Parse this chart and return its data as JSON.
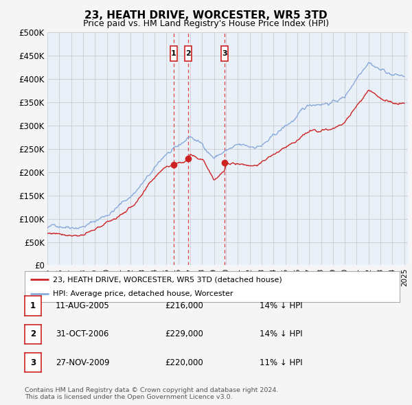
{
  "title": "23, HEATH DRIVE, WORCESTER, WR5 3TD",
  "subtitle": "Price paid vs. HM Land Registry's House Price Index (HPI)",
  "ytick_values": [
    0,
    50000,
    100000,
    150000,
    200000,
    250000,
    300000,
    350000,
    400000,
    450000,
    500000
  ],
  "ylim": [
    0,
    500000
  ],
  "xlim_start": 1995.0,
  "xlim_end": 2025.3,
  "background_color": "#f5f5f5",
  "plot_bg_color": "#eaf0f8",
  "grid_color": "#cccccc",
  "hpi_color": "#88aadd",
  "price_color": "#cc2222",
  "dashed_line_color": "#dd4444",
  "box_border_color": "#cc2222",
  "legend_label_price": "23, HEATH DRIVE, WORCESTER, WR5 3TD (detached house)",
  "legend_label_hpi": "HPI: Average price, detached house, Worcester",
  "sales": [
    {
      "num": 1,
      "date": "11-AUG-2005",
      "price": 216000,
      "year": 2005.615
    },
    {
      "num": 2,
      "date": "31-OCT-2006",
      "price": 229000,
      "year": 2006.83
    },
    {
      "num": 3,
      "date": "27-NOV-2009",
      "price": 220000,
      "year": 2009.9
    }
  ],
  "table_rows": [
    {
      "num": 1,
      "date": "11-AUG-2005",
      "price": "£216,000",
      "pct": "14% ↓ HPI"
    },
    {
      "num": 2,
      "date": "31-OCT-2006",
      "price": "£229,000",
      "pct": "14% ↓ HPI"
    },
    {
      "num": 3,
      "date": "27-NOV-2009",
      "price": "£220,000",
      "pct": "11% ↓ HPI"
    }
  ],
  "footer": "Contains HM Land Registry data © Crown copyright and database right 2024.\nThis data is licensed under the Open Government Licence v3.0.",
  "xtick_years": [
    1995,
    1996,
    1997,
    1998,
    1999,
    2000,
    2001,
    2002,
    2003,
    2004,
    2005,
    2006,
    2007,
    2008,
    2009,
    2010,
    2011,
    2012,
    2013,
    2014,
    2015,
    2016,
    2017,
    2018,
    2019,
    2020,
    2021,
    2022,
    2023,
    2024,
    2025
  ],
  "hpi_anchors_x": [
    1995,
    1996,
    1997,
    1998,
    1999,
    2000,
    2001,
    2002,
    2003,
    2004,
    2005,
    2006,
    2007,
    2008,
    2009,
    2010,
    2011,
    2012,
    2013,
    2014,
    2015,
    2016,
    2017,
    2018,
    2019,
    2020,
    2021,
    2022,
    2023,
    2024,
    2025
  ],
  "hpi_anchors_y": [
    80000,
    85000,
    90000,
    95000,
    105000,
    120000,
    140000,
    160000,
    190000,
    215000,
    248000,
    255000,
    278000,
    260000,
    235000,
    250000,
    255000,
    248000,
    255000,
    270000,
    290000,
    310000,
    330000,
    340000,
    345000,
    355000,
    400000,
    445000,
    430000,
    420000,
    415000
  ],
  "price_anchors_x": [
    1995,
    1996,
    1997,
    1998,
    1999,
    2000,
    2001,
    2002,
    2003,
    2004,
    2005,
    2005.615,
    2006,
    2006.83,
    2007,
    2008,
    2009,
    2009.9,
    2010,
    2011,
    2012,
    2013,
    2014,
    2015,
    2016,
    2017,
    2018,
    2019,
    2020,
    2021,
    2022,
    2023,
    2024,
    2025
  ],
  "price_anchors_y": [
    68000,
    70000,
    72000,
    75000,
    80000,
    95000,
    110000,
    130000,
    155000,
    185000,
    216000,
    216000,
    225000,
    229000,
    245000,
    240000,
    200000,
    220000,
    230000,
    235000,
    232000,
    240000,
    255000,
    268000,
    285000,
    300000,
    305000,
    310000,
    318000,
    355000,
    390000,
    375000,
    365000,
    360000
  ]
}
